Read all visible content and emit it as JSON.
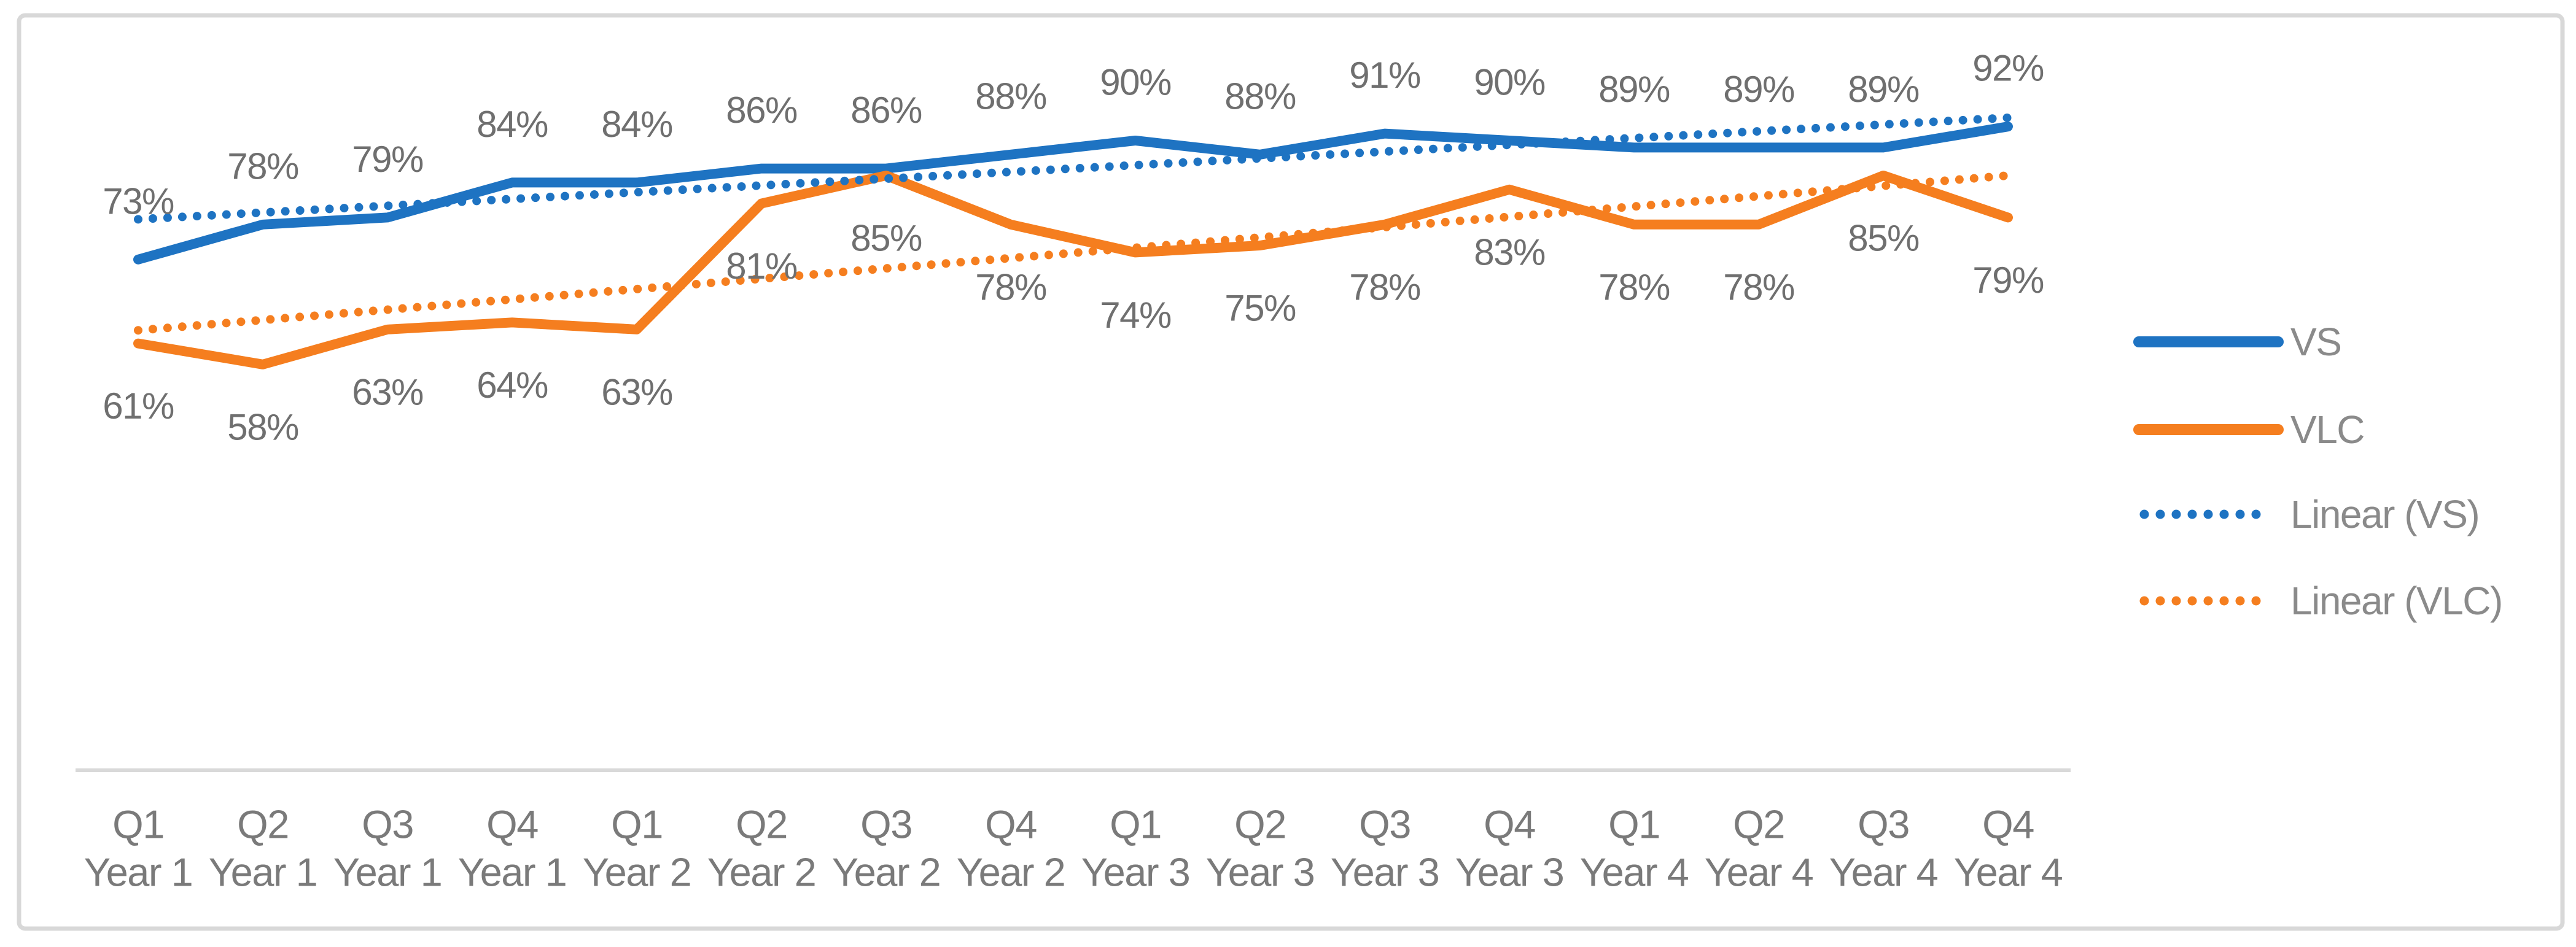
{
  "chart_data": {
    "type": "line",
    "title": "",
    "xlabel": "",
    "ylabel": "",
    "value_suffix": "%",
    "ylim": [
      0,
      100
    ],
    "grid": false,
    "legend_position": "right",
    "data_labels": true,
    "categories_line1": [
      "Q1",
      "Q2",
      "Q3",
      "Q4",
      "Q1",
      "Q2",
      "Q3",
      "Q4",
      "Q1",
      "Q2",
      "Q3",
      "Q4",
      "Q1",
      "Q2",
      "Q3",
      "Q4"
    ],
    "categories_line2": [
      "Year 1",
      "Year 1",
      "Year 1",
      "Year 1",
      "Year 2",
      "Year 2",
      "Year 2",
      "Year 2",
      "Year 3",
      "Year 3",
      "Year 3",
      "Year 3",
      "Year 4",
      "Year 4",
      "Year 4",
      "Year 4"
    ],
    "series": [
      {
        "name": "VS",
        "style": "solid",
        "color": "#1E73C2",
        "values": [
          73,
          78,
          79,
          84,
          84,
          86,
          86,
          88,
          90,
          88,
          91,
          90,
          89,
          89,
          89,
          92
        ]
      },
      {
        "name": "VLC",
        "style": "solid",
        "color": "#F57E1F",
        "values": [
          61,
          58,
          63,
          64,
          63,
          81,
          85,
          78,
          74,
          75,
          78,
          83,
          78,
          78,
          85,
          79
        ]
      }
    ],
    "trendlines": [
      {
        "name": "Linear (VS)",
        "series": "VS",
        "style": "dotted",
        "color": "#1E73C2"
      },
      {
        "name": "Linear (VLC)",
        "series": "VLC",
        "style": "dotted",
        "color": "#F57E1F"
      }
    ]
  },
  "legend": {
    "items": [
      {
        "label": "VS"
      },
      {
        "label": "VLC"
      },
      {
        "label": "Linear (VS)"
      },
      {
        "label": "Linear (VLC)"
      }
    ]
  },
  "colors": {
    "background": "#FFFFFF",
    "border": "#D8D8D8",
    "axis_line": "#D9D9D9",
    "data_label": "#6F6F6F",
    "axis_label": "#7A7A7A",
    "legend_label": "#8A8A8A"
  }
}
